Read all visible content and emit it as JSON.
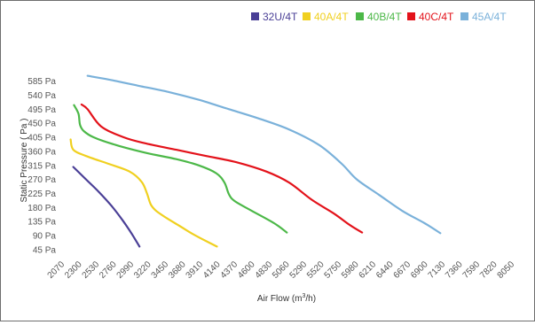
{
  "chart_data": {
    "type": "line",
    "title": "",
    "xlabel": "Air Flow (m³/h)",
    "xlabel_base": "Air Flow (m",
    "xlabel_sup": "3",
    "xlabel_tail": "/h)",
    "ylabel": "Static Pressure ( Pa )",
    "x_ticks": [
      "2070",
      "2300",
      "2530",
      "2760",
      "2990",
      "3220",
      "3450",
      "3680",
      "3910",
      "4140",
      "4370",
      "4600",
      "4830",
      "5060",
      "5290",
      "5520",
      "5750",
      "5980",
      "6210",
      "6440",
      "6670",
      "6900",
      "7130",
      "7360",
      "7590",
      "7820",
      "8050"
    ],
    "y_ticks": [
      "585 Pa",
      "540 Pa",
      "495 Pa",
      "450 Pa",
      "405 Pa",
      "360 Pa",
      "315 Pa",
      "270 Pa",
      "225 Pa",
      "180 Pa",
      "135 Pa",
      "90 Pa",
      "45 Pa"
    ],
    "xlim": [
      2070,
      8050
    ],
    "ylim": [
      25,
      615
    ],
    "grid": false,
    "legend_position": "top-right",
    "series": [
      {
        "name": "32U/4T",
        "color": "#4a3f96",
        "x": [
          2230,
          2400,
          2570,
          2740,
          2890,
          3010,
          3110
        ],
        "y": [
          310,
          270,
          230,
          185,
          138,
          95,
          55
        ]
      },
      {
        "name": "40A/4T",
        "color": "#f0d020",
        "x": [
          2195,
          2230,
          2400,
          2700,
          2980,
          3140,
          3210,
          3260,
          3330,
          3480,
          3650,
          3820,
          4000,
          4140
        ],
        "y": [
          398,
          365,
          345,
          320,
          295,
          262,
          225,
          190,
          170,
          145,
          120,
          95,
          72,
          55
        ]
      },
      {
        "name": "40B/4T",
        "color": "#4cb848",
        "x": [
          2240,
          2300,
          2320,
          2370,
          2500,
          2800,
          3200,
          3600,
          3900,
          4130,
          4240,
          4300,
          4380,
          4600,
          4900,
          5070
        ],
        "y": [
          508,
          480,
          445,
          425,
          405,
          380,
          355,
          335,
          315,
          290,
          260,
          222,
          200,
          170,
          130,
          100
        ]
      },
      {
        "name": "40C/4T",
        "color": "#e3121a",
        "x": [
          2340,
          2420,
          2600,
          2900,
          3200,
          3600,
          4000,
          4400,
          4800,
          5100,
          5400,
          5700,
          5900,
          6070
        ],
        "y": [
          510,
          495,
          440,
          405,
          385,
          365,
          345,
          325,
          295,
          260,
          205,
          160,
          125,
          100
        ]
      },
      {
        "name": "45A/4T",
        "color": "#7ab1da",
        "x": [
          2420,
          2700,
          3100,
          3500,
          3900,
          4300,
          4700,
          5100,
          5500,
          5800,
          6000,
          6300,
          6600,
          6900,
          7110
        ],
        "y": [
          602,
          590,
          570,
          550,
          525,
          495,
          465,
          430,
          380,
          320,
          270,
          220,
          170,
          130,
          98
        ]
      }
    ]
  }
}
